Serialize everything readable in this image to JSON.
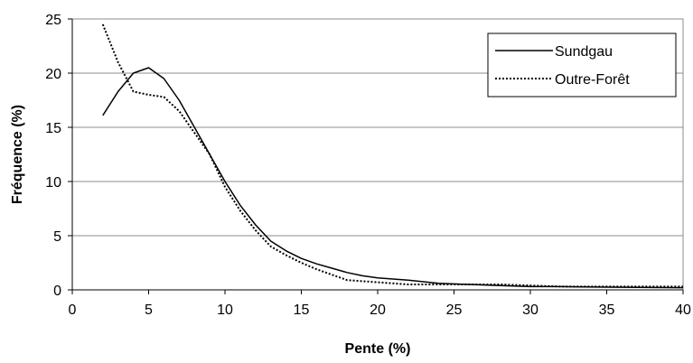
{
  "chart_data": {
    "type": "line",
    "title": "",
    "xlabel": "Pente (%)",
    "ylabel": "Fréquence (%)",
    "xlim": [
      0,
      40
    ],
    "ylim": [
      0,
      25
    ],
    "x_ticks": [
      0,
      5,
      10,
      15,
      20,
      25,
      30,
      35,
      40
    ],
    "y_ticks": [
      0,
      5,
      10,
      15,
      20,
      25
    ],
    "grid": "horizontal",
    "legend_position": "top-right",
    "series": [
      {
        "name": "Sundgau",
        "style": "solid",
        "color": "#000000",
        "x": [
          2,
          3,
          4,
          5,
          6,
          7,
          8,
          9,
          10,
          11,
          12,
          13,
          14,
          15,
          16,
          17,
          18,
          19,
          20,
          22,
          24,
          26,
          28,
          30,
          32,
          35,
          40
        ],
        "y": [
          16.1,
          18.3,
          20.0,
          20.5,
          19.5,
          17.5,
          15.0,
          12.5,
          10.0,
          7.8,
          6.0,
          4.5,
          3.6,
          2.9,
          2.4,
          2.0,
          1.6,
          1.3,
          1.1,
          0.9,
          0.6,
          0.5,
          0.4,
          0.3,
          0.3,
          0.25,
          0.2
        ]
      },
      {
        "name": "Outre-Forêt",
        "style": "dotted",
        "color": "#000000",
        "x": [
          2,
          3,
          4,
          5,
          6,
          7,
          8,
          9,
          10,
          11,
          12,
          13,
          14,
          15,
          16,
          17,
          18,
          19,
          20,
          22,
          24,
          26,
          28,
          30,
          32,
          35,
          40
        ],
        "y": [
          24.5,
          21.0,
          18.3,
          18.0,
          17.8,
          16.5,
          14.5,
          12.5,
          9.5,
          7.3,
          5.5,
          4.0,
          3.2,
          2.5,
          1.9,
          1.4,
          0.9,
          0.8,
          0.7,
          0.5,
          0.5,
          0.5,
          0.5,
          0.4,
          0.3,
          0.3,
          0.3
        ]
      }
    ]
  }
}
